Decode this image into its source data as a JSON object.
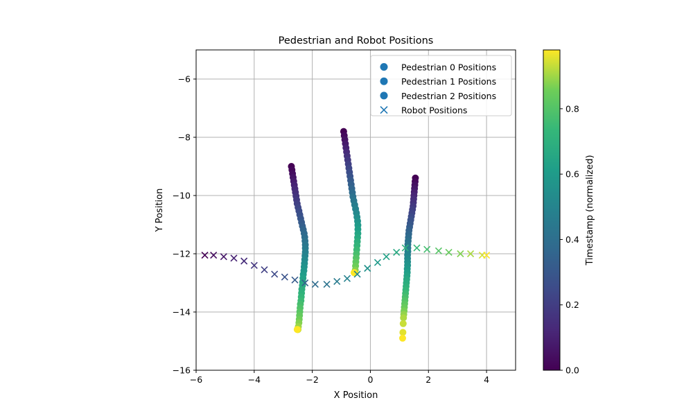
{
  "chart_data": {
    "type": "scatter",
    "title": "Pedestrian and Robot Positions",
    "xlabel": "X Position",
    "ylabel": "Y Position",
    "xlim": [
      -6,
      5
    ],
    "ylim": [
      -16,
      -5
    ],
    "xticks": [
      -6,
      -4,
      -2,
      0,
      2,
      4
    ],
    "yticks": [
      -16,
      -14,
      -12,
      -10,
      -8,
      -6
    ],
    "grid": true,
    "legend_position": "top-right",
    "colorbar": {
      "label": "Timestamp (normalized)",
      "range": [
        0,
        0.98
      ],
      "ticks": [
        0.0,
        0.2,
        0.4,
        0.6,
        0.8
      ],
      "tick_labels": [
        "0.0",
        "0.2",
        "0.4",
        "0.6",
        "0.8"
      ],
      "colormap": "viridis"
    },
    "series": [
      {
        "name": "Pedestrian 0 Positions",
        "marker": "circle",
        "legend_color": "#1f77b4",
        "x": [
          -2.72,
          -2.7,
          -2.68,
          -2.66,
          -2.64,
          -2.62,
          -2.6,
          -2.58,
          -2.56,
          -2.54,
          -2.52,
          -2.49,
          -2.46,
          -2.43,
          -2.4,
          -2.37,
          -2.34,
          -2.31,
          -2.28,
          -2.26,
          -2.25,
          -2.24,
          -2.24,
          -2.24,
          -2.25,
          -2.26,
          -2.27,
          -2.28,
          -2.29,
          -2.31,
          -2.32,
          -2.33,
          -2.34,
          -2.36,
          -2.37,
          -2.38,
          -2.39,
          -2.41,
          -2.42,
          -2.43,
          -2.44,
          -2.45,
          -2.46,
          -2.48,
          -2.49,
          -2.5,
          -2.51,
          -2.52
        ],
        "y": [
          -9.0,
          -9.12,
          -9.25,
          -9.38,
          -9.51,
          -9.64,
          -9.77,
          -9.89,
          -10.02,
          -10.15,
          -10.28,
          -10.41,
          -10.53,
          -10.66,
          -10.79,
          -10.92,
          -11.05,
          -11.17,
          -11.3,
          -11.43,
          -11.56,
          -11.69,
          -11.81,
          -11.94,
          -12.07,
          -12.2,
          -12.33,
          -12.45,
          -12.58,
          -12.71,
          -12.84,
          -12.97,
          -13.09,
          -13.22,
          -13.35,
          -13.48,
          -13.61,
          -13.73,
          -13.86,
          -13.99,
          -14.12,
          -14.25,
          -14.37,
          -14.5,
          -14.6,
          -14.6,
          -14.6,
          -14.6
        ]
      },
      {
        "name": "Pedestrian 1 Positions",
        "marker": "circle",
        "legend_color": "#1f77b4",
        "x": [
          -0.92,
          -0.9,
          -0.88,
          -0.86,
          -0.84,
          -0.82,
          -0.8,
          -0.78,
          -0.76,
          -0.74,
          -0.72,
          -0.7,
          -0.68,
          -0.66,
          -0.64,
          -0.62,
          -0.6,
          -0.57,
          -0.54,
          -0.51,
          -0.48,
          -0.46,
          -0.44,
          -0.43,
          -0.43,
          -0.43,
          -0.44,
          -0.45,
          -0.46,
          -0.47,
          -0.48,
          -0.49,
          -0.5,
          -0.51,
          -0.52,
          -0.53,
          -0.54,
          -0.55,
          -0.56
        ],
        "y": [
          -7.8,
          -7.94,
          -8.08,
          -8.22,
          -8.36,
          -8.5,
          -8.64,
          -8.78,
          -8.92,
          -9.06,
          -9.2,
          -9.34,
          -9.48,
          -9.62,
          -9.76,
          -9.9,
          -10.04,
          -10.18,
          -10.32,
          -10.46,
          -10.6,
          -10.74,
          -10.88,
          -11.02,
          -11.16,
          -11.3,
          -11.44,
          -11.58,
          -11.72,
          -11.86,
          -12.0,
          -12.14,
          -12.28,
          -12.42,
          -12.56,
          -12.65,
          -12.65,
          -12.65,
          -12.65
        ]
      },
      {
        "name": "Pedestrian 2 Positions",
        "marker": "circle",
        "legend_color": "#1f77b4",
        "x": [
          1.55,
          1.54,
          1.53,
          1.52,
          1.51,
          1.5,
          1.49,
          1.48,
          1.47,
          1.45,
          1.43,
          1.41,
          1.39,
          1.37,
          1.35,
          1.33,
          1.32,
          1.31,
          1.3,
          1.29,
          1.29,
          1.29,
          1.28,
          1.28,
          1.28,
          1.28,
          1.27,
          1.27,
          1.26,
          1.25,
          1.24,
          1.23,
          1.22,
          1.21,
          1.2,
          1.19,
          1.18,
          1.17,
          1.16,
          1.15,
          1.14,
          1.13,
          1.12,
          1.11
        ],
        "y": [
          -9.4,
          -9.52,
          -9.64,
          -9.76,
          -9.88,
          -10.0,
          -10.12,
          -10.24,
          -10.36,
          -10.48,
          -10.6,
          -10.72,
          -10.84,
          -10.96,
          -11.08,
          -11.2,
          -11.32,
          -11.44,
          -11.56,
          -11.68,
          -11.8,
          -11.92,
          -12.04,
          -12.16,
          -12.28,
          -12.4,
          -12.52,
          -12.64,
          -12.76,
          -12.88,
          -13.0,
          -13.12,
          -13.24,
          -13.36,
          -13.48,
          -13.6,
          -13.72,
          -13.84,
          -13.96,
          -14.08,
          -14.2,
          -14.4,
          -14.7,
          -14.9
        ]
      },
      {
        "name": "Robot Positions",
        "marker": "x",
        "legend_color": "#1f77b4",
        "x": [
          -5.7,
          -5.4,
          -5.05,
          -4.7,
          -4.35,
          -4.0,
          -3.65,
          -3.3,
          -2.95,
          -2.6,
          -2.25,
          -1.9,
          -1.5,
          -1.15,
          -0.8,
          -0.45,
          -0.1,
          0.25,
          0.55,
          0.9,
          1.2,
          1.6,
          1.95,
          2.35,
          2.7,
          3.1,
          3.45,
          3.85,
          4.0
        ],
        "y": [
          -12.05,
          -12.05,
          -12.1,
          -12.15,
          -12.25,
          -12.4,
          -12.55,
          -12.7,
          -12.8,
          -12.9,
          -13.0,
          -13.05,
          -13.05,
          -12.95,
          -12.85,
          -12.7,
          -12.5,
          -12.3,
          -12.1,
          -11.95,
          -11.8,
          -11.8,
          -11.85,
          -11.9,
          -11.95,
          -12.0,
          -12.0,
          -12.05,
          -12.05
        ]
      }
    ]
  }
}
